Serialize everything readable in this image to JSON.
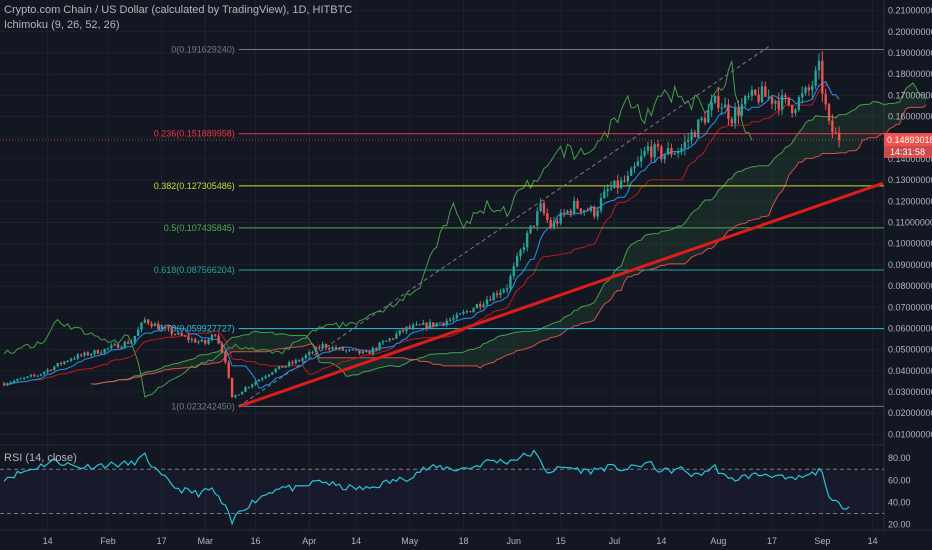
{
  "header": {
    "title": "Crypto.com Chain / US Dollar (calculated by TradingView), 1D, HITBTC",
    "indicator": "Ichimoku (9, 26, 52, 26)",
    "rsi_label": "RSI (14, close)"
  },
  "colors": {
    "background": "#131722",
    "grid": "#1e222d",
    "up": "#26a69a",
    "down": "#ef5350",
    "conversion": "#2196f3",
    "base": "#b71c1c",
    "lagging": "#43a047",
    "span_a": "#4caf50",
    "span_b": "#ef5350",
    "cloud": "#4caf50",
    "trendline": "#e01b1b",
    "rsi": "#26c6da",
    "text": "#b2b5be"
  },
  "chart_data": [
    {
      "type": "candlestick",
      "title": "Crypto.com Chain / US Dollar (calculated by TradingView), 1D, HITBTC",
      "ylim": [
        0.005,
        0.215
      ],
      "y_ticks": [
        "0.210000000",
        "0.200000000",
        "0.190000000",
        "0.180000000",
        "0.170000000",
        "0.160000000",
        "0.150000000",
        "0.140000000",
        "0.130000000",
        "0.120000000",
        "0.110000000",
        "0.100000000",
        "0.090000000",
        "0.080000000",
        "0.070000000",
        "0.060000000",
        "0.050000000",
        "0.040000000",
        "0.030000000",
        "0.020000000",
        "0.010000000"
      ],
      "y_tick_values": [
        0.21,
        0.2,
        0.19,
        0.18,
        0.17,
        0.16,
        0.15,
        0.14,
        0.13,
        0.12,
        0.11,
        0.1,
        0.09,
        0.08,
        0.07,
        0.06,
        0.05,
        0.04,
        0.03,
        0.02,
        0.01
      ],
      "x_ticks": [
        "14",
        "Feb",
        "17",
        "Mar",
        "16",
        "Apr",
        "14",
        "May",
        "18",
        "Jun",
        "15",
        "Jul",
        "14",
        "Aug",
        "17",
        "Sep",
        "14"
      ],
      "x_tick_day": [
        13,
        31,
        47,
        60,
        75,
        91,
        105,
        121,
        137,
        152,
        166,
        182,
        196,
        213,
        229,
        244,
        259
      ],
      "fib_levels": [
        {
          "label": "0(0.191629240)",
          "value": 0.19162924,
          "color": "#787b86"
        },
        {
          "label": "0.236(0.151889958)",
          "value": 0.151889958,
          "color": "#f23645"
        },
        {
          "label": "0.382(0.127305486)",
          "value": 0.127305486,
          "color": "#cddc39"
        },
        {
          "label": "0.5(0.107435845)",
          "value": 0.107435845,
          "color": "#4caf50"
        },
        {
          "label": "0.618(0.087566204)",
          "value": 0.087566204,
          "color": "#26a69a"
        },
        {
          "label": "0.78(0.059927727)",
          "value": 0.059927727,
          "color": "#26c6da"
        },
        {
          "label": "1(0.023242450)",
          "value": 0.02324245,
          "color": "#787b86"
        }
      ],
      "price_label": "0.148930183",
      "price_value": 0.148930183,
      "countdown": "14:31:58",
      "trendline": [
        {
          "day": 70,
          "value": 0.0232
        },
        {
          "day": 262,
          "value": 0.1285
        }
      ],
      "dashed_line": [
        {
          "day": 70,
          "value": 0.0232
        },
        {
          "day": 228,
          "value": 0.193
        }
      ],
      "price_keypoints": [
        [
          0,
          0.034
        ],
        [
          10,
          0.038
        ],
        [
          20,
          0.046
        ],
        [
          30,
          0.05
        ],
        [
          38,
          0.054
        ],
        [
          42,
          0.064
        ],
        [
          47,
          0.06
        ],
        [
          55,
          0.055
        ],
        [
          60,
          0.053
        ],
        [
          63,
          0.058
        ],
        [
          66,
          0.045
        ],
        [
          68,
          0.027
        ],
        [
          72,
          0.032
        ],
        [
          80,
          0.04
        ],
        [
          88,
          0.045
        ],
        [
          95,
          0.052
        ],
        [
          100,
          0.05
        ],
        [
          108,
          0.048
        ],
        [
          115,
          0.055
        ],
        [
          120,
          0.06
        ],
        [
          128,
          0.062
        ],
        [
          135,
          0.065
        ],
        [
          142,
          0.072
        ],
        [
          150,
          0.08
        ],
        [
          155,
          0.1
        ],
        [
          160,
          0.117
        ],
        [
          163,
          0.108
        ],
        [
          170,
          0.118
        ],
        [
          176,
          0.115
        ],
        [
          180,
          0.125
        ],
        [
          186,
          0.13
        ],
        [
          192,
          0.145
        ],
        [
          196,
          0.142
        ],
        [
          202,
          0.145
        ],
        [
          208,
          0.158
        ],
        [
          213,
          0.168
        ],
        [
          217,
          0.16
        ],
        [
          222,
          0.168
        ],
        [
          226,
          0.17
        ],
        [
          230,
          0.168
        ],
        [
          235,
          0.165
        ],
        [
          240,
          0.172
        ],
        [
          243,
          0.182
        ],
        [
          246,
          0.155
        ],
        [
          249,
          0.149
        ]
      ]
    },
    {
      "type": "line",
      "title": "RSI (14, close)",
      "ylim": [
        15,
        92
      ],
      "y_ticks": [
        "80.00",
        "60.00",
        "40.00",
        "20.00"
      ],
      "y_tick_values": [
        80,
        60,
        40,
        20
      ],
      "band": [
        30,
        70
      ],
      "keypoints": [
        [
          0,
          62
        ],
        [
          8,
          70
        ],
        [
          15,
          78
        ],
        [
          22,
          72
        ],
        [
          30,
          74
        ],
        [
          38,
          75
        ],
        [
          42,
          82
        ],
        [
          46,
          66
        ],
        [
          52,
          52
        ],
        [
          58,
          48
        ],
        [
          62,
          52
        ],
        [
          66,
          35
        ],
        [
          68,
          21
        ],
        [
          70,
          32
        ],
        [
          76,
          44
        ],
        [
          82,
          54
        ],
        [
          88,
          52
        ],
        [
          94,
          60
        ],
        [
          100,
          54
        ],
        [
          108,
          52
        ],
        [
          114,
          58
        ],
        [
          120,
          62
        ],
        [
          125,
          70
        ],
        [
          130,
          72
        ],
        [
          135,
          70
        ],
        [
          140,
          72
        ],
        [
          145,
          78
        ],
        [
          150,
          77
        ],
        [
          155,
          82
        ],
        [
          158,
          85
        ],
        [
          162,
          68
        ],
        [
          168,
          72
        ],
        [
          174,
          68
        ],
        [
          180,
          72
        ],
        [
          186,
          70
        ],
        [
          192,
          76
        ],
        [
          196,
          68
        ],
        [
          202,
          70
        ],
        [
          206,
          64
        ],
        [
          212,
          72
        ],
        [
          216,
          60
        ],
        [
          222,
          64
        ],
        [
          228,
          66
        ],
        [
          234,
          60
        ],
        [
          240,
          64
        ],
        [
          244,
          70
        ],
        [
          246,
          42
        ],
        [
          249,
          38
        ],
        [
          252,
          36
        ]
      ]
    }
  ]
}
